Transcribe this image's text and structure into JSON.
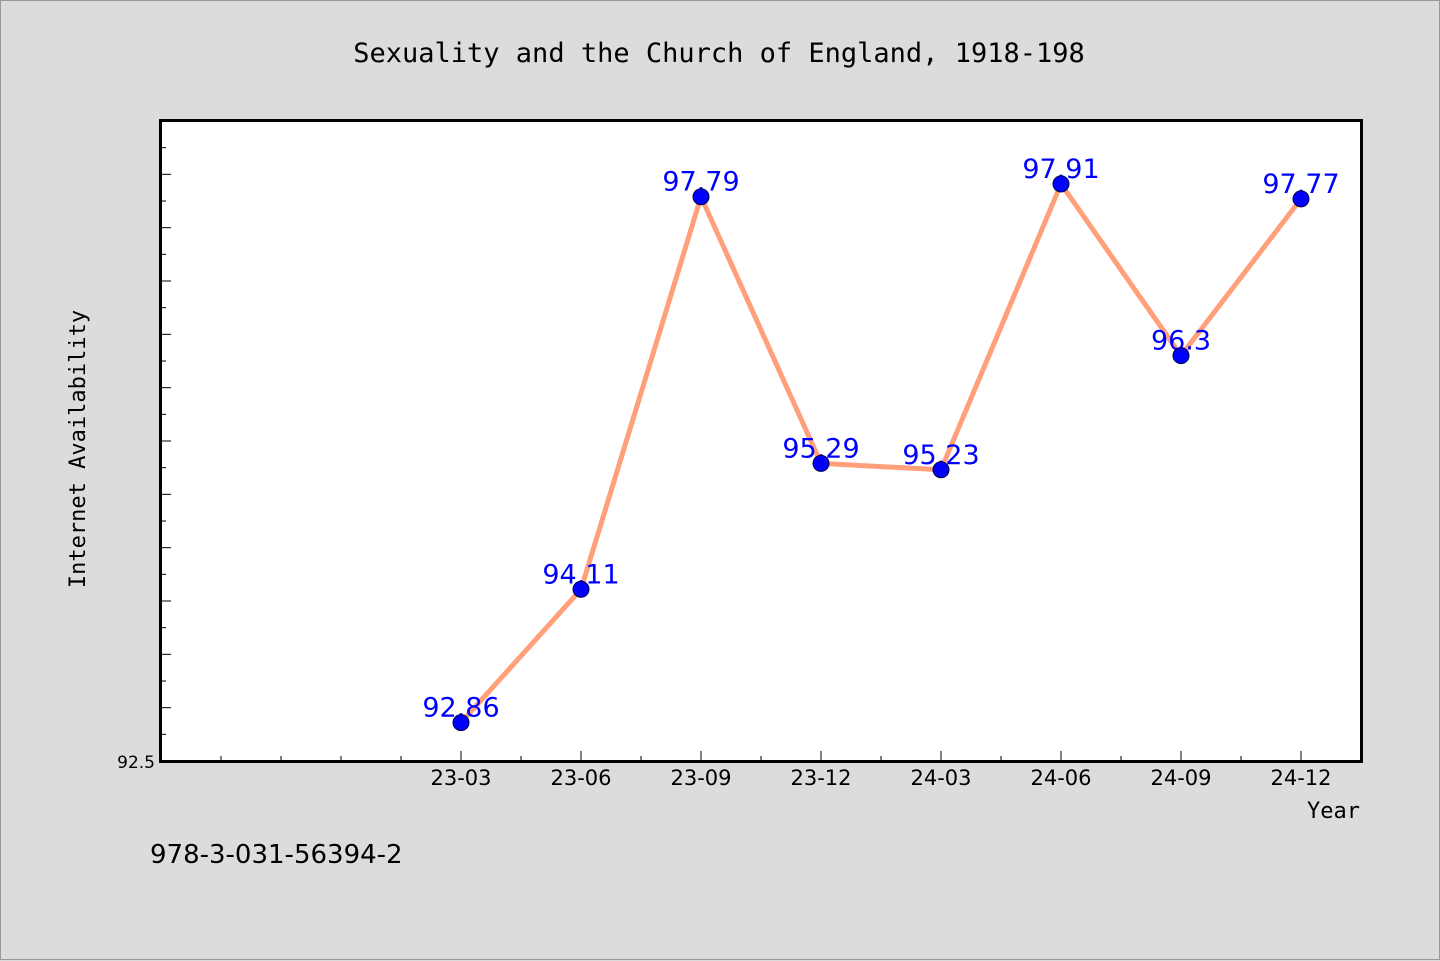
{
  "chart_data": {
    "type": "line",
    "title": "Sexuality and the Church of England, 1918-198",
    "xlabel": "Year",
    "ylabel": "Internet Availability",
    "categories": [
      "23-03",
      "23-06",
      "23-09",
      "23-12",
      "24-03",
      "24-06",
      "24-09",
      "24-12"
    ],
    "series": [
      {
        "values": [
          92.86,
          94.11,
          97.79,
          95.29,
          95.23,
          97.91,
          96.3,
          97.77
        ],
        "labels": [
          "92.86",
          "94.11",
          "97.79",
          "95.29",
          "95.23",
          "97.91",
          "96.3",
          "97.77"
        ],
        "line_color": "#ffa07a",
        "marker_color": "#0000ff"
      }
    ],
    "ylim": [
      92.5,
      98.5
    ],
    "y_tick_labels": [
      "92.5"
    ],
    "grid": false,
    "label_color": "#0000ff"
  },
  "footer_text": "978-3-031-56394-2"
}
